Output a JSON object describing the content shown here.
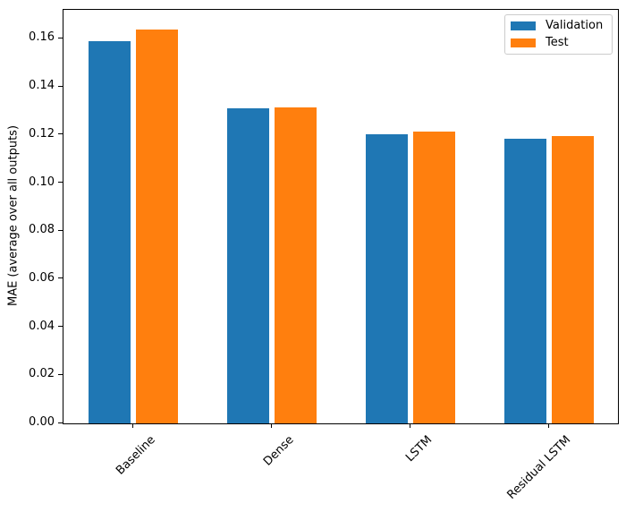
{
  "chart_data": {
    "type": "bar",
    "title": "",
    "xlabel": "",
    "ylabel": "MAE (average over all outputs)",
    "categories": [
      "Baseline",
      "Dense",
      "LSTM",
      "Residual LSTM"
    ],
    "series": [
      {
        "name": "Validation",
        "color": "#1f77b4",
        "values": [
          0.159,
          0.131,
          0.1205,
          0.1185
        ]
      },
      {
        "name": "Test",
        "color": "#ff7f0e",
        "values": [
          0.164,
          0.1315,
          0.1215,
          0.1195
        ]
      }
    ],
    "ylim": [
      0,
      0.1721
    ],
    "y_ticks": [
      "0.00",
      "0.02",
      "0.04",
      "0.06",
      "0.08",
      "0.10",
      "0.12",
      "0.14",
      "0.16"
    ],
    "y_tick_values": [
      0.0,
      0.02,
      0.04,
      0.06,
      0.08,
      0.1,
      0.12,
      0.14,
      0.16
    ],
    "x_tick_rotation_deg": 45,
    "bar_width_data_units": 0.3,
    "grid": false,
    "legend": {
      "position": "upper right",
      "entries": [
        "Validation",
        "Test"
      ]
    },
    "colors": {
      "spine": "#000000",
      "text": "#000000",
      "legend_border": "#cccccc",
      "background": "#ffffff"
    }
  }
}
